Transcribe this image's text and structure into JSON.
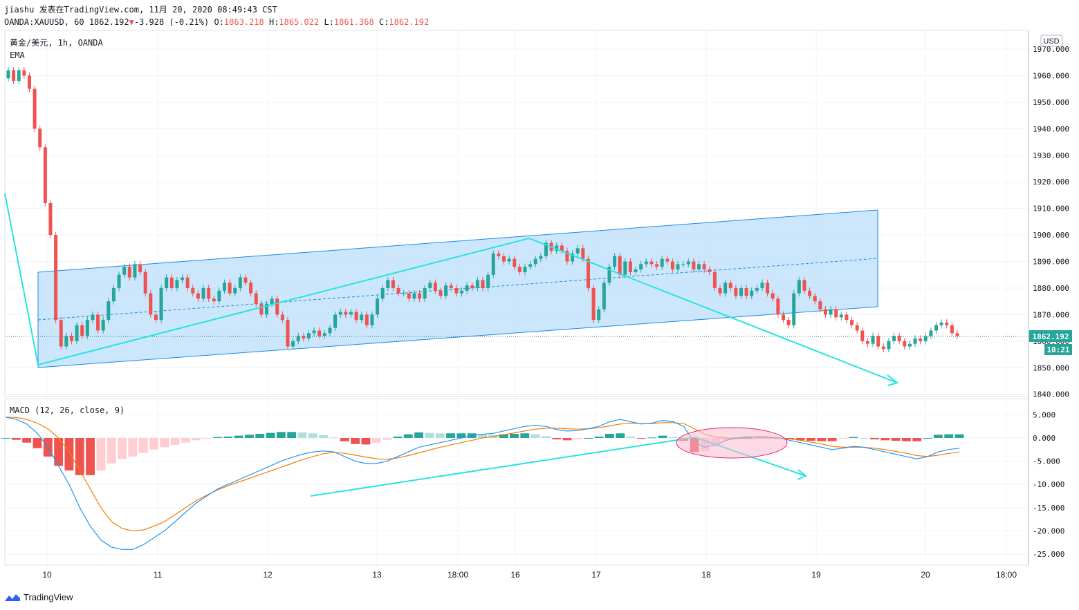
{
  "header": {
    "author": "jiashu",
    "published": "发表在TradingView.com,",
    "date": "11月 20, 2020 08:49:43 CST",
    "symbol": "OANDA:XAUUSD, 60",
    "last": "1862.192",
    "change_arrow": "▼",
    "change": "-3.928 (-0.21%)",
    "o_label": "O:",
    "o_val": "1863.218",
    "h_label": "H:",
    "h_val": "1865.022",
    "l_label": "L:",
    "l_val": "1861.368",
    "c_label": "C:",
    "c_val": "1862.192"
  },
  "overlay": {
    "symbol_line": "黄金/美元, 1h, OANDA",
    "ema_label": "EMA",
    "macd_label": "MACD (12, 26, close, 9)",
    "currency_badge": "USD",
    "price_badge": "1862.192",
    "countdown_badge": "10:21"
  },
  "brand": {
    "name": "TradingView",
    "icon": "tradingview-logo-icon"
  },
  "colors": {
    "up": "#26a69a",
    "down": "#ef5350",
    "hist_up_strong": "#26a69a",
    "hist_up_weak": "#b2dfdb",
    "hist_down_strong": "#ef5350",
    "hist_down_weak": "#ffcdd2",
    "macd_line": "#2196f3",
    "signal_line": "#f57c00",
    "channel_fill": "#bbdefb",
    "channel_line": "#1e88e5",
    "trend_line": "#26e3e0",
    "ellipse_fill": "#f8bbd0",
    "ellipse_line": "#e91e63"
  },
  "chart_data": [
    {
      "type": "candlestick",
      "title": "黄金/美元, 1h, OANDA",
      "yaxis_ticks": [
        "1970.000",
        "1960.000",
        "1950.000",
        "1940.000",
        "1930.000",
        "1920.000",
        "1910.000",
        "1900.000",
        "1890.000",
        "1880.000",
        "1870.000",
        "1860.000",
        "1850.000",
        "1840.000"
      ],
      "ylim": [
        1840,
        1972
      ],
      "xaxis_ticks": [
        "10",
        "11",
        "12",
        "13",
        "18:00",
        "16",
        "17",
        "18",
        "19",
        "20",
        "18:00"
      ],
      "close_series": [
        1962,
        1958,
        1962,
        1960,
        1955,
        1940,
        1933,
        1912,
        1900,
        1868,
        1858,
        1862,
        1860,
        1866,
        1862,
        1868,
        1870,
        1864,
        1868,
        1875,
        1880,
        1885,
        1888,
        1884,
        1889,
        1886,
        1878,
        1870,
        1868,
        1880,
        1884,
        1880,
        1883,
        1884,
        1880,
        1878,
        1876,
        1880,
        1876,
        1875,
        1879,
        1882,
        1878,
        1880,
        1884,
        1882,
        1878,
        1874,
        1870,
        1874,
        1876,
        1870,
        1868,
        1858,
        1860,
        1862,
        1861,
        1863,
        1864,
        1862,
        1863,
        1865,
        1870,
        1871,
        1870,
        1871,
        1868,
        1870,
        1866,
        1870,
        1876,
        1880,
        1883,
        1880,
        1878,
        1878,
        1876,
        1878,
        1876,
        1880,
        1882,
        1879,
        1877,
        1881,
        1880,
        1878,
        1879,
        1881,
        1880,
        1883,
        1880,
        1885,
        1893,
        1892,
        1890,
        1891,
        1888,
        1886,
        1888,
        1889,
        1891,
        1892,
        1897,
        1894,
        1896,
        1894,
        1890,
        1893,
        1895,
        1891,
        1880,
        1868,
        1872,
        1882,
        1888,
        1892,
        1885,
        1890,
        1886,
        1887,
        1889,
        1890,
        1889,
        1888,
        1891,
        1890,
        1887,
        1889,
        1889,
        1890,
        1887,
        1889,
        1887,
        1886,
        1880,
        1878,
        1882,
        1880,
        1877,
        1880,
        1877,
        1879,
        1880,
        1882,
        1878,
        1876,
        1870,
        1868,
        1866,
        1878,
        1883,
        1879,
        1877,
        1875,
        1872,
        1870,
        1872,
        1869,
        1870,
        1868,
        1866,
        1864,
        1860,
        1859,
        1862,
        1858,
        1857,
        1860,
        1862,
        1860,
        1858,
        1859,
        1861,
        1860,
        1862,
        1864,
        1866,
        1867,
        1866,
        1863,
        1862
      ],
      "last_price": 1862.192
    },
    {
      "type": "line",
      "title": "MACD (12, 26, close, 9)",
      "yaxis_ticks": [
        "5.000",
        "0.000",
        "-5.000",
        "-10.000",
        "-15.000",
        "-20.000",
        "-25.000"
      ],
      "ylim": [
        -26,
        6
      ],
      "series": [
        {
          "name": "MACD",
          "values": [
            4.5,
            4.0,
            3.0,
            1.0,
            -2.0,
            -6.0,
            -10.0,
            -15.0,
            -19.0,
            -22.0,
            -23.5,
            -24.0,
            -24.0,
            -23.0,
            -21.5,
            -20.0,
            -18.0,
            -16.0,
            -14.0,
            -12.5,
            -11.0,
            -10.0,
            -9.0,
            -8.0,
            -7.0,
            -6.0,
            -5.0,
            -4.2,
            -3.5,
            -3.0,
            -2.8,
            -3.0,
            -4.0,
            -5.0,
            -5.5,
            -5.5,
            -5.0,
            -4.0,
            -3.0,
            -2.0,
            -1.5,
            -1.0,
            -0.5,
            0.0,
            0.5,
            0.8,
            1.0,
            1.5,
            2.0,
            2.5,
            2.7,
            2.5,
            1.8,
            1.5,
            1.6,
            2.0,
            2.5,
            3.5,
            4.0,
            3.5,
            3.0,
            3.2,
            3.8,
            3.5,
            2.5,
            -1.0,
            -2.0,
            -1.5,
            -0.5,
            0.0,
            0.2,
            0.3,
            0.2,
            0.0,
            -0.5,
            -1.0,
            -1.5,
            -2.0,
            -2.5,
            -2.2,
            -1.8,
            -2.0,
            -2.5,
            -3.0,
            -3.5,
            -4.0,
            -4.5,
            -4.0,
            -3.0,
            -2.5,
            -2.2
          ]
        },
        {
          "name": "Signal",
          "values": [
            4.5,
            4.4,
            4.0,
            3.2,
            2.0,
            0.0,
            -3.0,
            -7.0,
            -11.0,
            -15.0,
            -18.0,
            -19.5,
            -20.0,
            -19.8,
            -19.0,
            -18.0,
            -16.5,
            -15.0,
            -13.5,
            -12.3,
            -11.2,
            -10.3,
            -9.5,
            -8.7,
            -7.9,
            -7.1,
            -6.3,
            -5.5,
            -4.7,
            -4.0,
            -3.4,
            -3.1,
            -3.3,
            -3.7,
            -4.1,
            -4.5,
            -4.6,
            -4.3,
            -3.8,
            -3.2,
            -2.6,
            -2.0,
            -1.5,
            -1.0,
            -0.5,
            0.0,
            0.3,
            0.7,
            1.1,
            1.5,
            1.9,
            2.1,
            2.1,
            2.0,
            1.9,
            2.0,
            2.2,
            2.6,
            3.0,
            3.2,
            3.1,
            3.1,
            3.3,
            3.3,
            3.1,
            2.0,
            0.8,
            0.2,
            0.0,
            -0.1,
            -0.1,
            0.0,
            0.0,
            0.0,
            -0.2,
            -0.5,
            -0.9,
            -1.3,
            -1.8,
            -2.0,
            -2.0,
            -2.0,
            -2.2,
            -2.5,
            -2.9,
            -3.3,
            -3.8,
            -4.0,
            -3.7,
            -3.3,
            -3.0
          ]
        }
      ]
    }
  ]
}
